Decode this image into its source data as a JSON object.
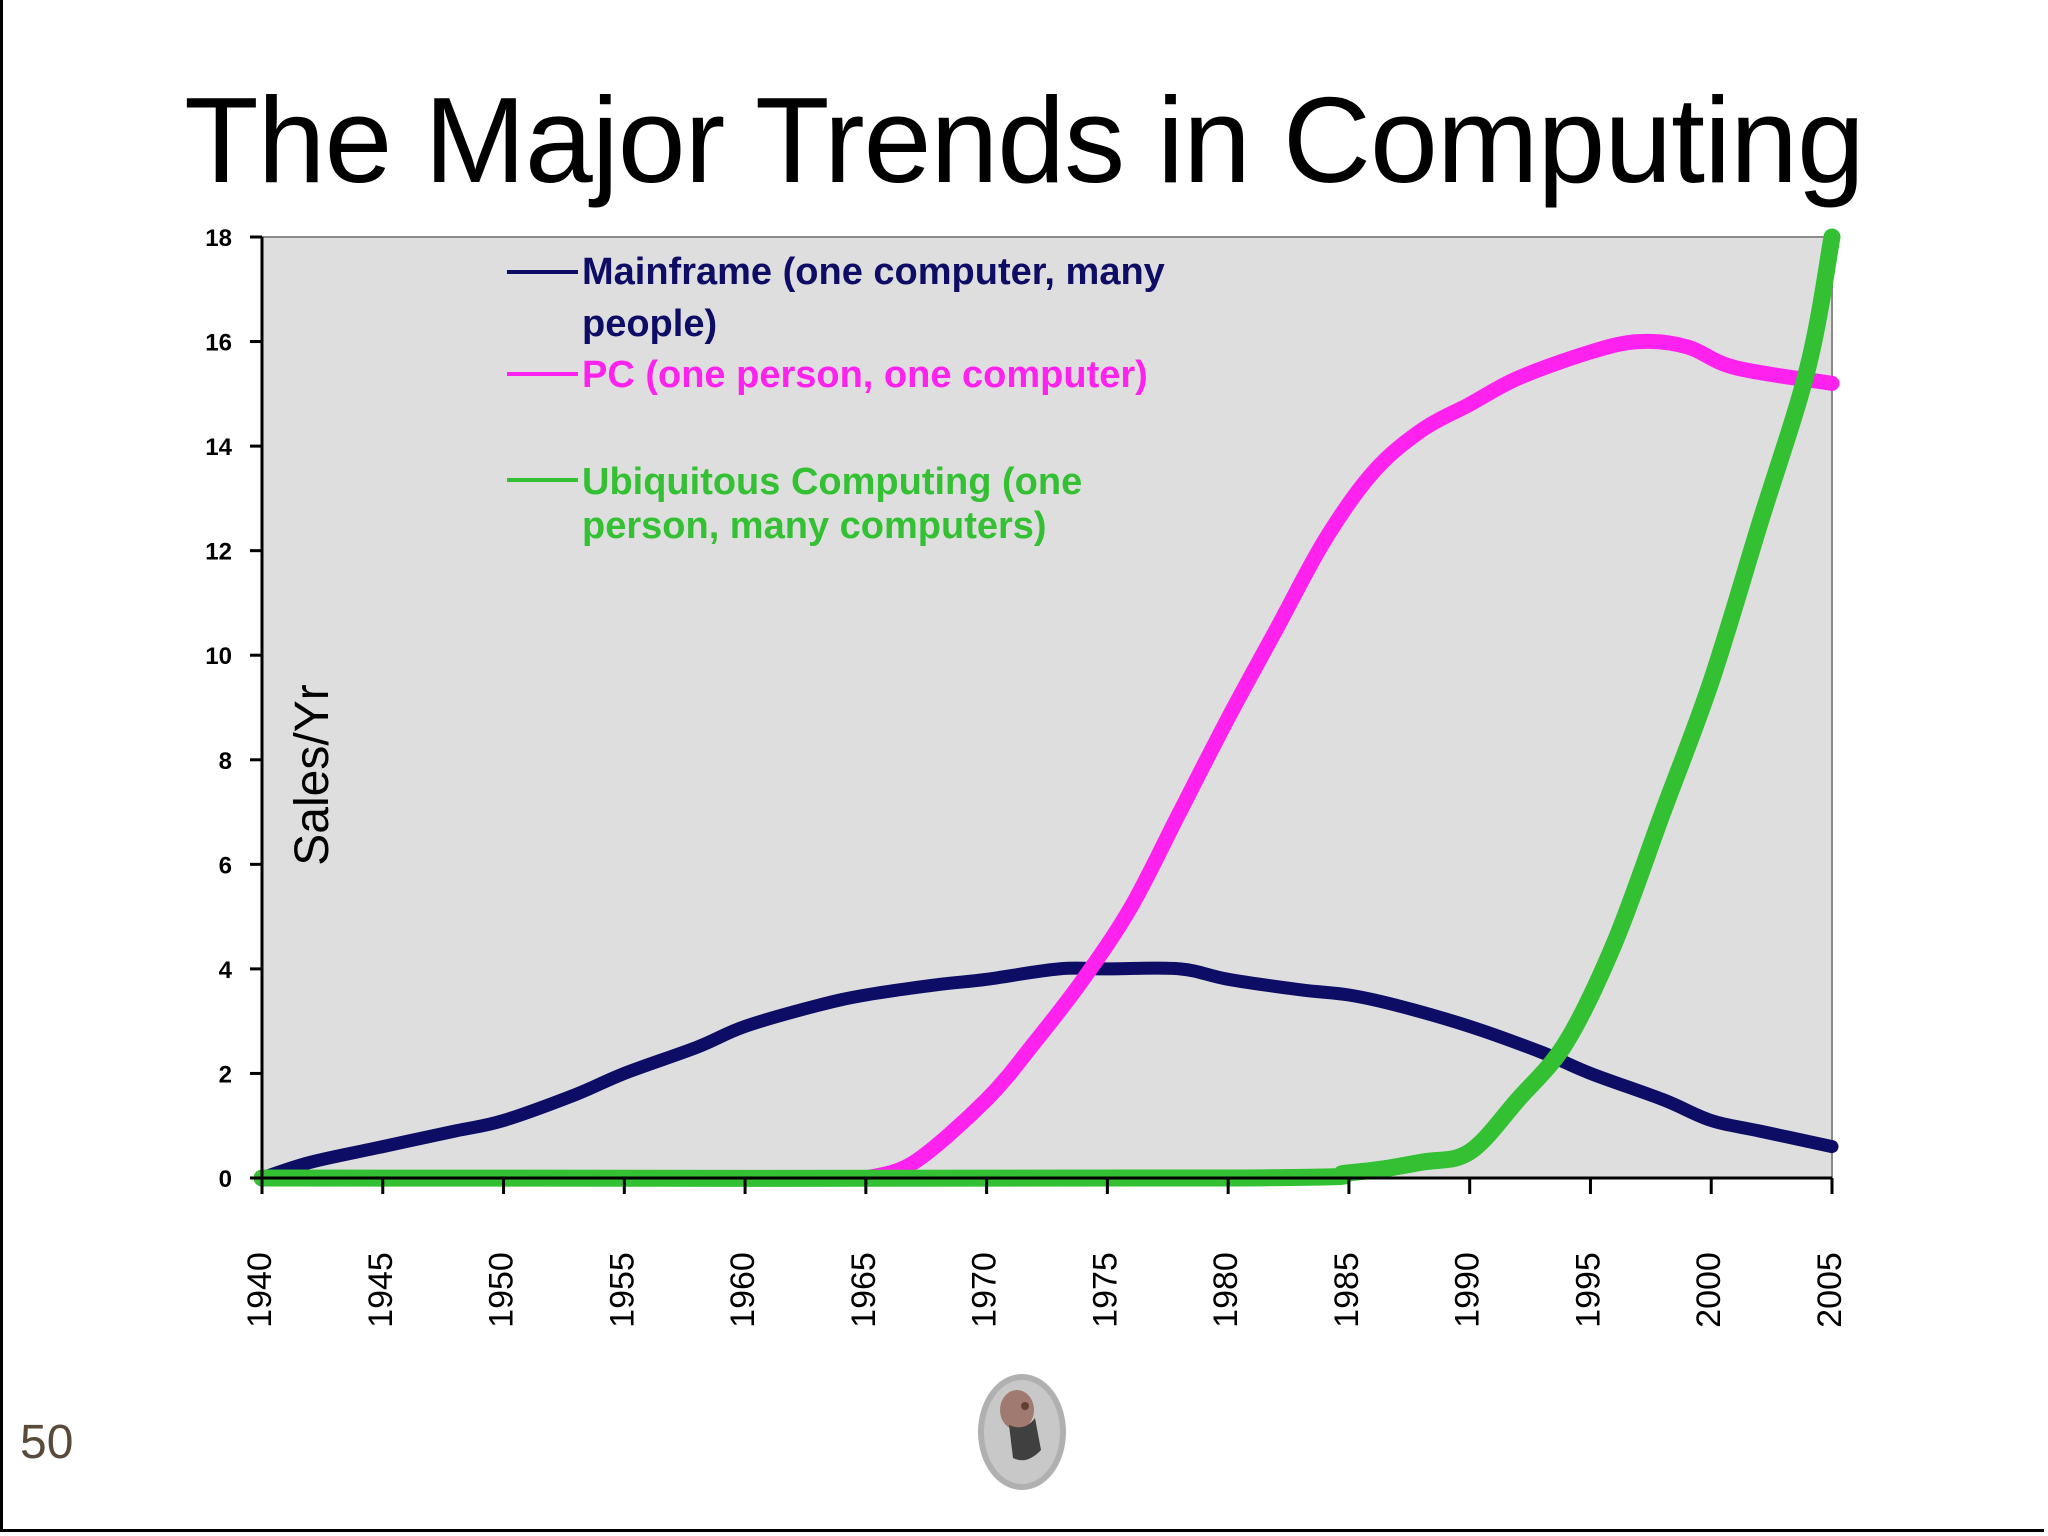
{
  "slide": {
    "title": "The Major Trends in Computing",
    "page_number": "50"
  },
  "colors": {
    "plot_background": "#dedede",
    "mainframe": "#0d0d66",
    "pc": "#ff22ee",
    "ubiquitous": "#33c033"
  },
  "chart_data": {
    "type": "line",
    "title": "",
    "xlabel": "",
    "ylabel": "Sales/Yr",
    "xlim": [
      1940,
      2005
    ],
    "ylim": [
      0,
      18
    ],
    "grid": false,
    "legend_position": "top-left",
    "x_ticks": [
      1940,
      1945,
      1950,
      1955,
      1960,
      1965,
      1970,
      1975,
      1980,
      1985,
      1990,
      1995,
      2000,
      2005
    ],
    "y_ticks": [
      0,
      2,
      4,
      6,
      8,
      10,
      12,
      14,
      16,
      18
    ],
    "series": [
      {
        "name": "Mainframe (one computer, many people)",
        "legend_lines": [
          "Mainframe (one computer, many",
          "people)"
        ],
        "color_key": "mainframe",
        "points": [
          [
            1940,
            0
          ],
          [
            1942,
            0.3
          ],
          [
            1945,
            0.6
          ],
          [
            1948,
            0.9
          ],
          [
            1950,
            1.1
          ],
          [
            1953,
            1.6
          ],
          [
            1955,
            2.0
          ],
          [
            1958,
            2.5
          ],
          [
            1960,
            2.9
          ],
          [
            1963,
            3.3
          ],
          [
            1965,
            3.5
          ],
          [
            1968,
            3.7
          ],
          [
            1970,
            3.8
          ],
          [
            1973,
            4.0
          ],
          [
            1975,
            4.0
          ],
          [
            1978,
            4.0
          ],
          [
            1980,
            3.8
          ],
          [
            1983,
            3.6
          ],
          [
            1985,
            3.5
          ],
          [
            1987,
            3.3
          ],
          [
            1990,
            2.9
          ],
          [
            1993,
            2.4
          ],
          [
            1995,
            2.0
          ],
          [
            1998,
            1.5
          ],
          [
            2000,
            1.1
          ],
          [
            2002,
            0.9
          ],
          [
            2005,
            0.6
          ]
        ]
      },
      {
        "name": "PC (one person, one computer)",
        "legend_lines": [
          "PC (one person, one computer)"
        ],
        "color_key": "pc",
        "points": [
          [
            1965,
            0
          ],
          [
            1967,
            0.3
          ],
          [
            1970,
            1.5
          ],
          [
            1972,
            2.6
          ],
          [
            1974,
            3.8
          ],
          [
            1976,
            5.2
          ],
          [
            1978,
            7.0
          ],
          [
            1980,
            8.8
          ],
          [
            1982,
            10.5
          ],
          [
            1984,
            12.2
          ],
          [
            1986,
            13.5
          ],
          [
            1988,
            14.3
          ],
          [
            1990,
            14.8
          ],
          [
            1992,
            15.3
          ],
          [
            1995,
            15.8
          ],
          [
            1997,
            16.0
          ],
          [
            1999,
            15.9
          ],
          [
            2001,
            15.5
          ],
          [
            2005,
            15.2
          ]
        ]
      },
      {
        "name": "Ubiquitous Computing (one person, many computers)",
        "legend_lines": [
          "Ubiquitous Computing (one",
          "person, many computers)"
        ],
        "color_key": "ubiquitous",
        "points": [
          [
            1940,
            0
          ],
          [
            1980,
            0
          ],
          [
            1985,
            0.1
          ],
          [
            1988,
            0.3
          ],
          [
            1990,
            0.5
          ],
          [
            1992,
            1.5
          ],
          [
            1994,
            2.6
          ],
          [
            1996,
            4.5
          ],
          [
            1998,
            7.0
          ],
          [
            2000,
            9.5
          ],
          [
            2002,
            12.5
          ],
          [
            2004,
            15.5
          ],
          [
            2005,
            18.0
          ]
        ]
      }
    ]
  }
}
